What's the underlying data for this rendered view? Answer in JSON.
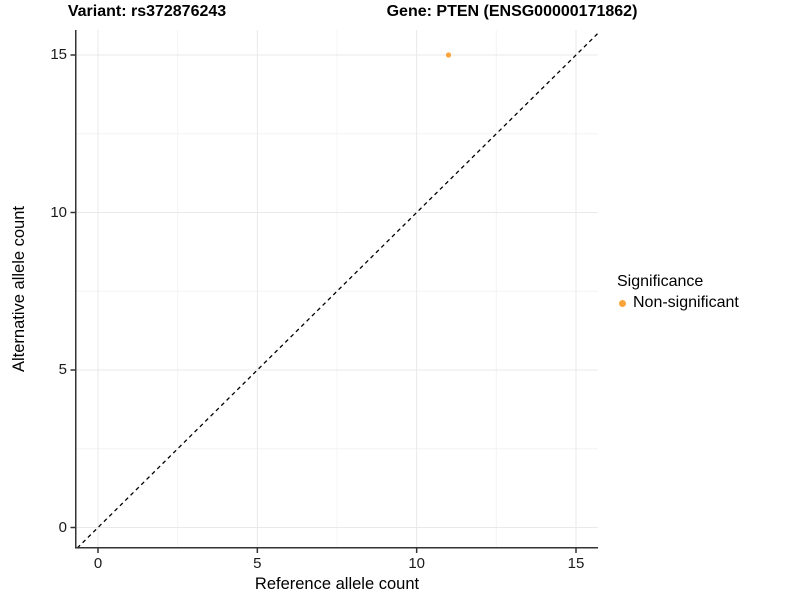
{
  "titles": {
    "variant": "Variant: rs372876243",
    "gene": "Gene: PTEN (ENSG00000171862)"
  },
  "axes": {
    "x": {
      "label": "Reference allele count",
      "ticks": [
        "0",
        "5",
        "10",
        "15"
      ]
    },
    "y": {
      "label": "Alternative allele count",
      "ticks": [
        "0",
        "5",
        "10",
        "15"
      ]
    }
  },
  "legend": {
    "title": "Significance",
    "items": [
      {
        "label": "Non-significant",
        "color": "#FAA43A"
      }
    ]
  },
  "chart_data": {
    "type": "scatter",
    "title_left": "Variant: rs372876243",
    "title_right": "Gene: PTEN (ENSG00000171862)",
    "xlabel": "Reference allele count",
    "ylabel": "Alternative allele count",
    "xlim": [
      -0.75,
      15.75
    ],
    "ylim": [
      -0.75,
      15.75
    ],
    "x_ticks": [
      0,
      5,
      10,
      15
    ],
    "y_ticks": [
      0,
      5,
      10,
      15
    ],
    "grid": "major+minor",
    "legend_position": "right",
    "points": [
      {
        "x": 11,
        "y": 15,
        "series": "Non-significant",
        "color": "#FAA43A"
      }
    ],
    "reference_line": {
      "type": "identity",
      "slope": 1,
      "intercept": 0,
      "style": "dashed",
      "color": "#000000"
    }
  }
}
